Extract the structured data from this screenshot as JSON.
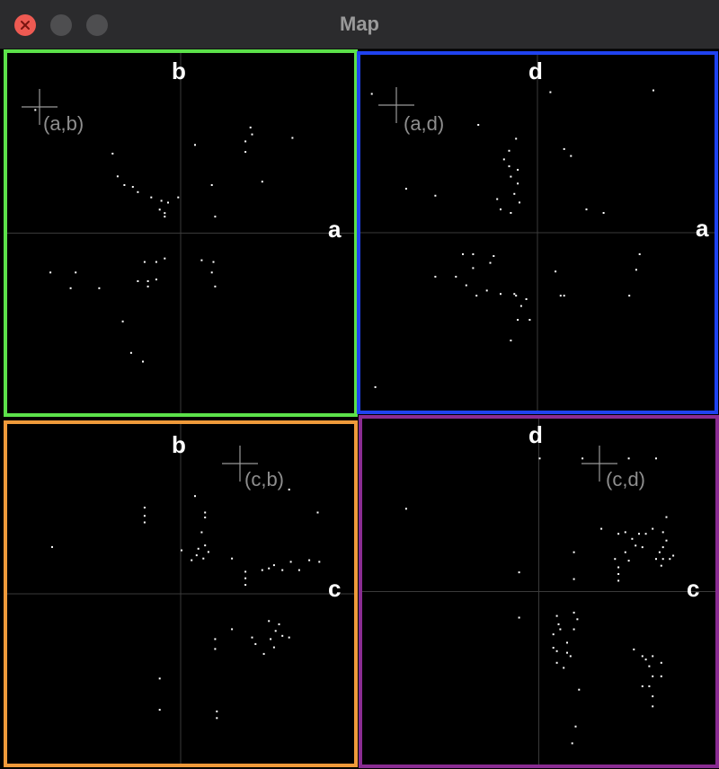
{
  "window": {
    "title": "Map"
  },
  "panels": [
    {
      "id": "ab",
      "color": "#5ce14a",
      "x_label": "a",
      "y_label": "b",
      "cross_label": "(a,b)",
      "dots": [
        [
          -0.87,
          0.71
        ],
        [
          -0.41,
          0.46
        ],
        [
          0.08,
          0.51
        ],
        [
          0.38,
          0.47
        ],
        [
          0.41,
          0.61
        ],
        [
          0.38,
          0.53
        ],
        [
          0.42,
          0.57
        ],
        [
          -0.38,
          0.33
        ],
        [
          -0.34,
          0.28
        ],
        [
          -0.29,
          0.27
        ],
        [
          -0.26,
          0.24
        ],
        [
          -0.18,
          0.21
        ],
        [
          -0.12,
          0.19
        ],
        [
          -0.08,
          0.18
        ],
        [
          -0.13,
          0.14
        ],
        [
          -0.1,
          0.12
        ],
        [
          -0.02,
          0.21
        ],
        [
          -0.1,
          0.1
        ],
        [
          0.18,
          0.28
        ],
        [
          0.48,
          0.3
        ],
        [
          0.2,
          0.1
        ],
        [
          0.66,
          0.55
        ],
        [
          -0.78,
          -0.22
        ],
        [
          -0.63,
          -0.22
        ],
        [
          -0.66,
          -0.31
        ],
        [
          -0.49,
          -0.31
        ],
        [
          -0.26,
          -0.27
        ],
        [
          -0.2,
          -0.27
        ],
        [
          -0.15,
          -0.26
        ],
        [
          -0.22,
          -0.16
        ],
        [
          -0.15,
          -0.16
        ],
        [
          -0.1,
          -0.14
        ],
        [
          -0.2,
          -0.3
        ],
        [
          0.12,
          -0.15
        ],
        [
          0.19,
          -0.16
        ],
        [
          0.18,
          -0.22
        ],
        [
          0.2,
          -0.3
        ],
        [
          -0.35,
          -0.5
        ],
        [
          -0.3,
          -0.68
        ],
        [
          -0.23,
          -0.73
        ]
      ]
    },
    {
      "id": "ad",
      "color": "#1f43f0",
      "x_label": "a",
      "y_label": "d",
      "cross_label": "(a,d)",
      "dots": [
        [
          -0.97,
          0.81
        ],
        [
          -0.77,
          0.26
        ],
        [
          -0.6,
          0.22
        ],
        [
          -0.35,
          0.63
        ],
        [
          -0.2,
          0.43
        ],
        [
          -0.14,
          0.23
        ],
        [
          -0.17,
          0.39
        ],
        [
          -0.16,
          0.33
        ],
        [
          -0.13,
          0.55
        ],
        [
          -0.17,
          0.48
        ],
        [
          -0.12,
          0.37
        ],
        [
          -0.12,
          0.29
        ],
        [
          -0.16,
          0.12
        ],
        [
          -0.11,
          0.18
        ],
        [
          -0.22,
          0.14
        ],
        [
          -0.24,
          0.2
        ],
        [
          0.07,
          0.82
        ],
        [
          0.67,
          0.83
        ],
        [
          0.15,
          0.49
        ],
        [
          0.19,
          0.45
        ],
        [
          0.28,
          0.14
        ],
        [
          0.38,
          0.12
        ],
        [
          0.59,
          -0.12
        ],
        [
          0.57,
          -0.21
        ],
        [
          0.53,
          -0.36
        ],
        [
          0.1,
          -0.22
        ],
        [
          0.13,
          -0.36
        ],
        [
          0.15,
          -0.36
        ],
        [
          -0.48,
          -0.25
        ],
        [
          -0.6,
          -0.25
        ],
        [
          -0.44,
          -0.12
        ],
        [
          -0.38,
          -0.12
        ],
        [
          -0.38,
          -0.2
        ],
        [
          -0.42,
          -0.3
        ],
        [
          -0.36,
          -0.36
        ],
        [
          -0.28,
          -0.17
        ],
        [
          -0.26,
          -0.13
        ],
        [
          -0.22,
          -0.35
        ],
        [
          -0.3,
          -0.33
        ],
        [
          -0.14,
          -0.35
        ],
        [
          -0.12,
          -0.5
        ],
        [
          -0.1,
          -0.42
        ],
        [
          -0.13,
          -0.36
        ],
        [
          -0.07,
          -0.38
        ],
        [
          -0.05,
          -0.5
        ],
        [
          -0.16,
          -0.62
        ],
        [
          -0.95,
          -0.89
        ]
      ]
    },
    {
      "id": "cb",
      "color": "#ef9a3a",
      "x_label": "c",
      "y_label": "b",
      "cross_label": "(c,b)",
      "dots": [
        [
          -0.22,
          0.53
        ],
        [
          -0.22,
          0.48
        ],
        [
          -0.22,
          0.44
        ],
        [
          0.08,
          0.6
        ],
        [
          0.14,
          0.5
        ],
        [
          0.14,
          0.47
        ],
        [
          0.12,
          0.38
        ],
        [
          0.14,
          0.3
        ],
        [
          0.1,
          0.28
        ],
        [
          0.09,
          0.24
        ],
        [
          0.13,
          0.22
        ],
        [
          0.16,
          0.26
        ],
        [
          0.0,
          0.27
        ],
        [
          0.06,
          0.21
        ],
        [
          0.3,
          0.22
        ],
        [
          0.38,
          0.14
        ],
        [
          0.38,
          0.1
        ],
        [
          0.38,
          0.06
        ],
        [
          0.48,
          0.15
        ],
        [
          0.52,
          0.16
        ],
        [
          0.55,
          0.18
        ],
        [
          0.6,
          0.15
        ],
        [
          0.65,
          0.2
        ],
        [
          0.7,
          0.15
        ],
        [
          0.76,
          0.21
        ],
        [
          0.82,
          0.2
        ],
        [
          0.64,
          0.64
        ],
        [
          0.81,
          0.5
        ],
        [
          -0.77,
          0.29
        ],
        [
          0.3,
          -0.21
        ],
        [
          0.2,
          -0.27
        ],
        [
          0.2,
          -0.33
        ],
        [
          0.42,
          -0.26
        ],
        [
          0.44,
          -0.3
        ],
        [
          0.52,
          -0.16
        ],
        [
          0.58,
          -0.18
        ],
        [
          0.56,
          -0.22
        ],
        [
          0.6,
          -0.25
        ],
        [
          0.53,
          -0.27
        ],
        [
          0.64,
          -0.26
        ],
        [
          0.55,
          -0.32
        ],
        [
          0.49,
          -0.36
        ],
        [
          -0.13,
          -0.51
        ],
        [
          -0.13,
          -0.7
        ],
        [
          0.21,
          -0.71
        ],
        [
          0.21,
          -0.75
        ]
      ]
    },
    {
      "id": "cd",
      "color": "#8a2c92",
      "x_label": "c",
      "y_label": "d",
      "cross_label": "(c,d)",
      "dots": [
        [
          0.0,
          0.8
        ],
        [
          0.25,
          0.8
        ],
        [
          0.52,
          0.8
        ],
        [
          0.68,
          0.8
        ],
        [
          0.74,
          0.45
        ],
        [
          -0.78,
          0.5
        ],
        [
          0.36,
          0.38
        ],
        [
          0.46,
          0.35
        ],
        [
          0.5,
          0.36
        ],
        [
          0.54,
          0.32
        ],
        [
          0.58,
          0.35
        ],
        [
          0.62,
          0.35
        ],
        [
          0.66,
          0.38
        ],
        [
          0.72,
          0.36
        ],
        [
          0.74,
          0.31
        ],
        [
          0.72,
          0.27
        ],
        [
          0.7,
          0.24
        ],
        [
          0.72,
          0.2
        ],
        [
          0.78,
          0.22
        ],
        [
          0.5,
          0.24
        ],
        [
          0.52,
          0.19
        ],
        [
          0.44,
          0.2
        ],
        [
          0.46,
          0.15
        ],
        [
          0.46,
          0.11
        ],
        [
          0.46,
          0.07
        ],
        [
          0.56,
          0.28
        ],
        [
          0.6,
          0.27
        ],
        [
          0.68,
          0.2
        ],
        [
          0.76,
          0.2
        ],
        [
          0.2,
          0.24
        ],
        [
          0.2,
          0.08
        ],
        [
          0.71,
          0.16
        ],
        [
          0.2,
          -0.22
        ],
        [
          0.1,
          -0.14
        ],
        [
          0.11,
          -0.19
        ],
        [
          0.12,
          -0.22
        ],
        [
          0.08,
          -0.25
        ],
        [
          0.08,
          -0.33
        ],
        [
          0.1,
          -0.35
        ],
        [
          0.1,
          -0.42
        ],
        [
          0.16,
          -0.3
        ],
        [
          0.16,
          -0.36
        ],
        [
          0.14,
          -0.45
        ],
        [
          0.2,
          -0.12
        ],
        [
          0.22,
          -0.16
        ],
        [
          0.18,
          -0.38
        ],
        [
          0.55,
          -0.34
        ],
        [
          0.6,
          -0.38
        ],
        [
          0.62,
          -0.4
        ],
        [
          0.66,
          -0.38
        ],
        [
          0.64,
          -0.44
        ],
        [
          0.66,
          -0.5
        ],
        [
          0.64,
          -0.56
        ],
        [
          0.6,
          -0.56
        ],
        [
          0.66,
          -0.62
        ],
        [
          0.71,
          -0.42
        ],
        [
          0.71,
          -0.5
        ],
        [
          0.23,
          -0.58
        ],
        [
          0.21,
          -0.8
        ],
        [
          0.66,
          -0.68
        ],
        [
          -0.12,
          -0.15
        ],
        [
          -0.12,
          0.12
        ],
        [
          0.19,
          -0.9
        ]
      ]
    }
  ]
}
